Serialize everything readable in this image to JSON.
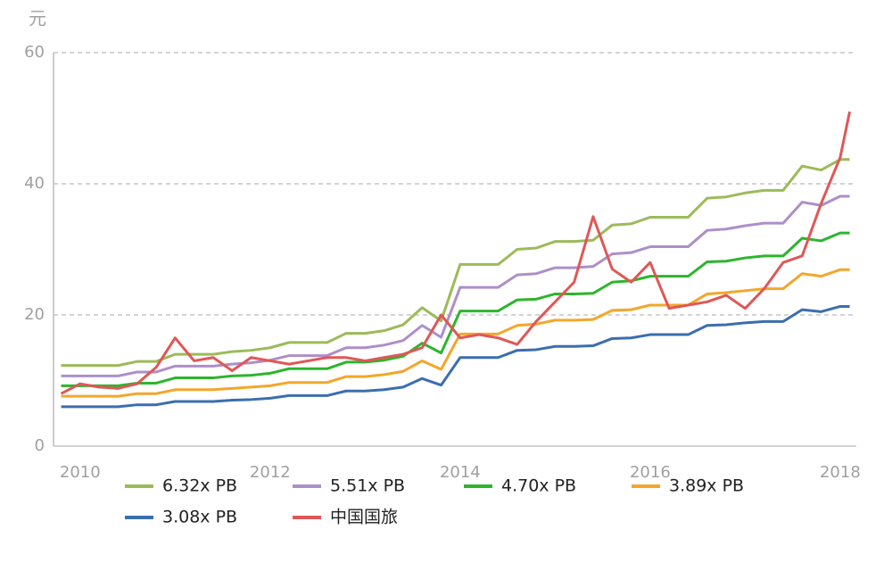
{
  "chart_data": {
    "type": "line",
    "y_label": "元",
    "x": [
      2009.8,
      2010.0,
      2010.2,
      2010.4,
      2010.6,
      2010.8,
      2011.0,
      2011.2,
      2011.4,
      2011.6,
      2011.8,
      2012.0,
      2012.2,
      2012.4,
      2012.6,
      2012.8,
      2013.0,
      2013.2,
      2013.4,
      2013.6,
      2013.8,
      2014.0,
      2014.2,
      2014.4,
      2014.6,
      2014.8,
      2015.0,
      2015.2,
      2015.4,
      2015.6,
      2015.8,
      2016.0,
      2016.2,
      2016.4,
      2016.6,
      2016.8,
      2017.0,
      2017.2,
      2017.4,
      2017.6,
      2017.8,
      2018.0,
      2018.1
    ],
    "series": [
      {
        "name": "6.32x PB",
        "color": "#9bbb59",
        "values": [
          12.3,
          12.3,
          12.3,
          12.3,
          12.9,
          12.9,
          14.0,
          14.0,
          14.0,
          14.4,
          14.6,
          15.0,
          15.8,
          15.8,
          15.8,
          17.2,
          17.2,
          17.6,
          18.5,
          21.1,
          19.1,
          27.7,
          27.7,
          27.7,
          30.0,
          30.2,
          31.2,
          31.2,
          31.4,
          33.7,
          33.9,
          34.9,
          34.9,
          34.9,
          37.8,
          38.0,
          38.6,
          39.0,
          39.0,
          42.7,
          42.1,
          43.7,
          43.7
        ]
      },
      {
        "name": "5.51x PB",
        "color": "#ad8fc9",
        "values": [
          10.7,
          10.7,
          10.7,
          10.7,
          11.3,
          11.3,
          12.2,
          12.2,
          12.2,
          12.5,
          12.7,
          13.1,
          13.8,
          13.8,
          13.8,
          15.0,
          15.0,
          15.4,
          16.1,
          18.4,
          16.6,
          24.2,
          24.2,
          24.2,
          26.1,
          26.3,
          27.2,
          27.2,
          27.4,
          29.3,
          29.5,
          30.4,
          30.4,
          30.4,
          32.9,
          33.1,
          33.6,
          34.0,
          34.0,
          37.2,
          36.7,
          38.1,
          38.1
        ]
      },
      {
        "name": "4.70x PB",
        "color": "#2db52d",
        "values": [
          9.2,
          9.2,
          9.2,
          9.2,
          9.6,
          9.6,
          10.4,
          10.4,
          10.4,
          10.7,
          10.8,
          11.1,
          11.8,
          11.8,
          11.8,
          12.8,
          12.8,
          13.1,
          13.7,
          15.7,
          14.2,
          20.6,
          20.6,
          20.6,
          22.3,
          22.4,
          23.2,
          23.2,
          23.3,
          25.0,
          25.2,
          25.9,
          25.9,
          25.9,
          28.1,
          28.2,
          28.7,
          29.0,
          29.0,
          31.7,
          31.3,
          32.5,
          32.5
        ]
      },
      {
        "name": "3.89x PB",
        "color": "#f4a62a",
        "values": [
          7.6,
          7.6,
          7.6,
          7.6,
          8.0,
          8.0,
          8.6,
          8.6,
          8.6,
          8.8,
          9.0,
          9.2,
          9.7,
          9.7,
          9.7,
          10.6,
          10.6,
          10.9,
          11.4,
          13.0,
          11.7,
          17.1,
          17.1,
          17.1,
          18.4,
          18.6,
          19.2,
          19.2,
          19.3,
          20.7,
          20.8,
          21.5,
          21.5,
          21.5,
          23.2,
          23.4,
          23.7,
          24.0,
          24.0,
          26.3,
          25.9,
          26.9,
          26.9
        ]
      },
      {
        "name": "3.08x PB",
        "color": "#3b6eaf",
        "values": [
          6.0,
          6.0,
          6.0,
          6.0,
          6.3,
          6.3,
          6.8,
          6.8,
          6.8,
          7.0,
          7.1,
          7.3,
          7.7,
          7.7,
          7.7,
          8.4,
          8.4,
          8.6,
          9.0,
          10.3,
          9.3,
          13.5,
          13.5,
          13.5,
          14.6,
          14.7,
          15.2,
          15.2,
          15.3,
          16.4,
          16.5,
          17.0,
          17.0,
          17.0,
          18.4,
          18.5,
          18.8,
          19.0,
          19.0,
          20.8,
          20.5,
          21.3,
          21.3
        ]
      },
      {
        "name": "中国国旅",
        "color": "#e05757",
        "values": [
          8.0,
          9.5,
          9.0,
          8.8,
          9.5,
          12.0,
          16.5,
          13.0,
          13.5,
          11.5,
          13.5,
          13.0,
          12.5,
          13.0,
          13.5,
          13.5,
          13.0,
          13.5,
          14.0,
          15.0,
          20.0,
          16.5,
          17.0,
          16.5,
          15.5,
          19.0,
          22.0,
          25.0,
          35.0,
          27.0,
          25.0,
          28.0,
          21.0,
          21.5,
          22.0,
          23.0,
          21.0,
          24.0,
          28.0,
          29.0,
          37.0,
          44.0,
          51.0
        ]
      }
    ],
    "xlim": [
      2009.72,
      2018.17
    ],
    "xticks": [
      2010,
      2012,
      2014,
      2016,
      2018
    ],
    "ylim": [
      0,
      60
    ],
    "yticks": [
      0,
      20,
      40,
      60
    ],
    "grid": true,
    "legend_position": "bottom"
  }
}
